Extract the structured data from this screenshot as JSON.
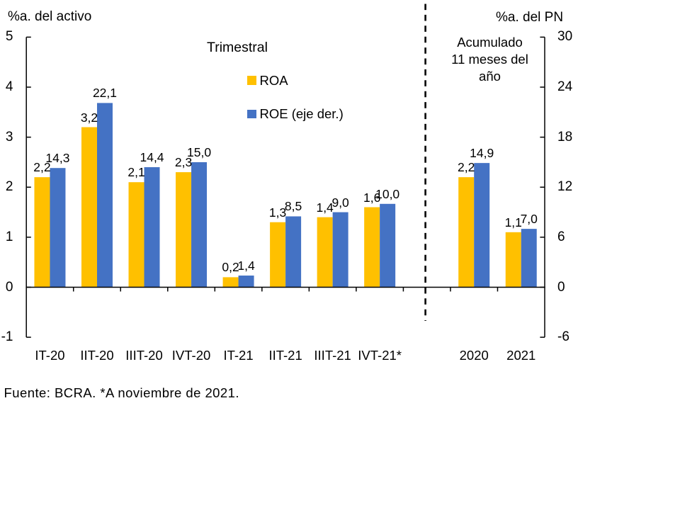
{
  "chart_data": {
    "type": "bar",
    "categories": [
      "IT-20",
      "IIT-20",
      "IIIT-20",
      "IVT-20",
      "IT-21",
      "IIT-21",
      "IIIT-21",
      "IVT-21*",
      "",
      "2020",
      "2021"
    ],
    "series": [
      {
        "name": "ROA",
        "axis": "left",
        "color": "#FFC000",
        "values": [
          2.2,
          3.2,
          2.1,
          2.3,
          0.2,
          1.3,
          1.4,
          1.6,
          null,
          2.2,
          1.1
        ],
        "labels": [
          "2,2",
          "3,2",
          "2,1",
          "2,3",
          "0,2",
          "1,3",
          "1,4",
          "1,6",
          null,
          "2,2",
          "1,1"
        ]
      },
      {
        "name": "ROE (eje der.)",
        "axis": "right",
        "color": "#4472C4",
        "values": [
          14.3,
          22.1,
          14.4,
          15.0,
          1.4,
          8.5,
          9.0,
          10.0,
          null,
          14.9,
          7.0
        ],
        "labels": [
          "14,3",
          "22,1",
          "14,4",
          "15,0",
          "1,4",
          "8,5",
          "9,0",
          "10,0",
          null,
          "14,9",
          "7,0"
        ]
      }
    ],
    "left_axis": {
      "title": "%a. del activo",
      "min": -1,
      "max": 5,
      "ticks": [
        5,
        4,
        3,
        2,
        1,
        0,
        -1
      ]
    },
    "right_axis": {
      "title": "%a. del PN",
      "min": -6,
      "max": 30,
      "ticks": [
        30,
        24,
        18,
        12,
        6,
        0,
        -6
      ]
    },
    "separator": {
      "style": "dashed",
      "between": [
        "IVT-21*",
        "2020"
      ]
    },
    "grid": false,
    "legend_position": "upper-middle",
    "sections": {
      "quarterly": "Trimestral",
      "accumulated": "Acumulado\n11 meses del\naño"
    },
    "source_note": "Fuente: BCRA. *A noviembre de 2021."
  },
  "legend": [
    {
      "label": "ROA",
      "color": "#FFC000"
    },
    {
      "label": "ROE (eje der.)",
      "color": "#4472C4"
    }
  ],
  "colors": {
    "roa": "#FFC000",
    "roe": "#4472C4",
    "axis": "#000000",
    "text": "#000000",
    "background": "#FFFFFF"
  }
}
